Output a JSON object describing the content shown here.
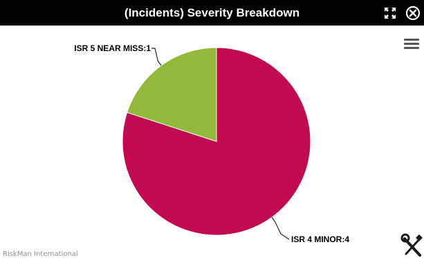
{
  "window": {
    "title": "(Incidents) Severity Breakdown",
    "expand_icon": "expand-icon",
    "close_icon": "close-circle-icon",
    "menu_icon": "hamburger-menu-icon",
    "tools_icon": "wrench-screwdriver-icon"
  },
  "credit": "RiskMan International",
  "chart_data": {
    "type": "pie",
    "title": "",
    "slices": [
      {
        "label": "ISR 4 MINOR",
        "value": 4,
        "color": "#c10a4f",
        "display": "ISR 4 MINOR:4"
      },
      {
        "label": "ISR 5 NEAR MISS",
        "value": 1,
        "color": "#93b93b",
        "display": "ISR 5 NEAR MISS:1"
      }
    ],
    "legend": "none",
    "data_labels": "outside with connector lines"
  }
}
